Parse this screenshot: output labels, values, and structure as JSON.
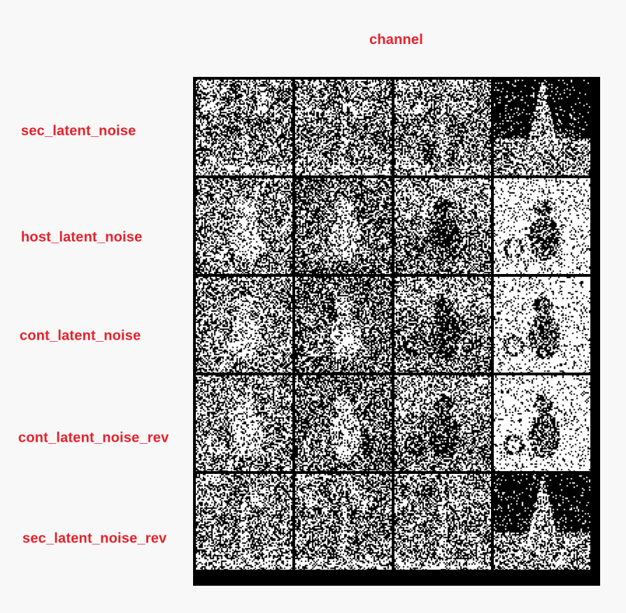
{
  "column_header": "channel",
  "rows": [
    {
      "label": "sec_latent_noise",
      "subject": "tower",
      "tiles": [
        0.55,
        0.45,
        0.5,
        0.1
      ]
    },
    {
      "label": "host_latent_noise",
      "subject": "cat",
      "tiles": [
        0.55,
        0.42,
        0.5,
        0.82
      ]
    },
    {
      "label": "cont_latent_noise",
      "subject": "cat",
      "tiles": [
        0.55,
        0.42,
        0.48,
        0.82
      ]
    },
    {
      "label": "cont_latent_noise_rev",
      "subject": "cat",
      "tiles": [
        0.55,
        0.45,
        0.5,
        0.86
      ]
    },
    {
      "label": "sec_latent_noise_rev",
      "subject": "tower",
      "tiles": [
        0.55,
        0.45,
        0.5,
        0.1
      ]
    }
  ],
  "colors": {
    "label": "#e8202a",
    "background": "#f8f8f8"
  }
}
